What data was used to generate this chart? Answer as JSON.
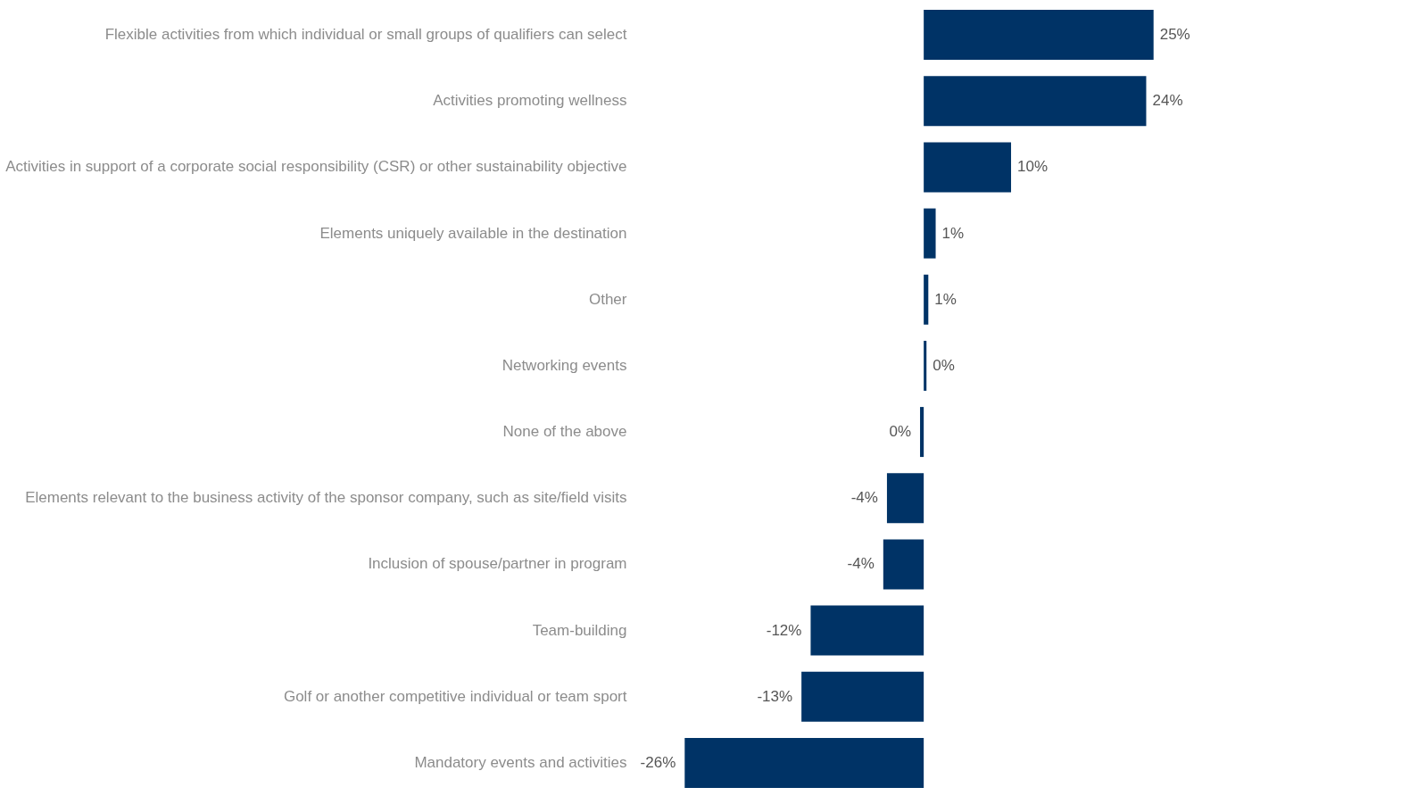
{
  "chart_data": {
    "type": "bar",
    "orientation": "horizontal",
    "categories": [
      "Flexible activities from which individual or small groups of qualifiers can select",
      "Activities promoting wellness",
      "Activities in support of a corporate social responsibility (CSR) or other sustainability objective",
      "Elements uniquely available in the destination",
      "Other",
      "Networking events",
      "None of the above",
      "Elements relevant to the business activity of the sponsor company, such as site/field visits",
      "Inclusion of spouse/partner in program",
      "Team-building",
      "Golf or another competitive individual or team sport",
      "Mandatory events and activities"
    ],
    "values": [
      25,
      24.2,
      9.5,
      1.3,
      0.5,
      0.3,
      -0.4,
      -4,
      -4.4,
      -12.3,
      -13.3,
      -26
    ],
    "value_labels": [
      "25%",
      "24%",
      "10%",
      "1%",
      "1%",
      "0%",
      "0%",
      "-4%",
      "-4%",
      "-12%",
      "-13%",
      "-26%"
    ],
    "color": "#003366"
  }
}
